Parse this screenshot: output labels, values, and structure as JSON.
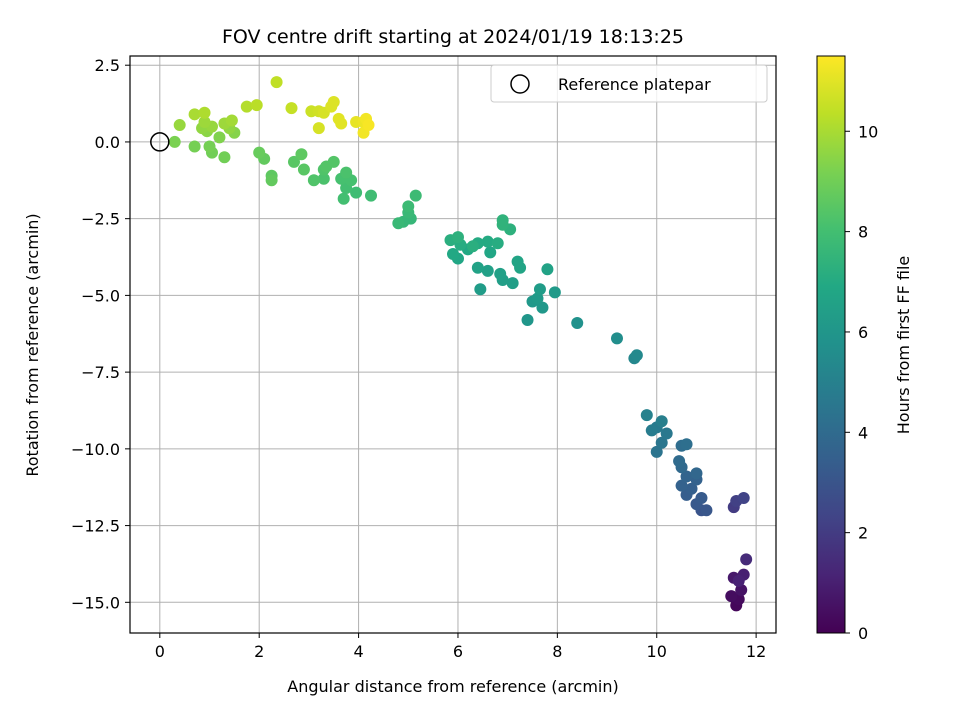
{
  "chart_data": {
    "type": "scatter",
    "title": "FOV centre drift starting at 2024/01/19 18:13:25",
    "xlabel": "Angular distance from reference (arcmin)",
    "ylabel": "Rotation from reference (arcmin)",
    "xlim": [
      -0.6,
      12.4
    ],
    "ylim": [
      -16.0,
      2.8
    ],
    "xticks": [
      0,
      2,
      4,
      6,
      8,
      10,
      12
    ],
    "yticks": [
      2.5,
      0.0,
      -2.5,
      -5.0,
      -7.5,
      -10.0,
      -12.5,
      -15.0
    ],
    "grid": true,
    "legend": {
      "placement": "top-right",
      "entries": [
        "Reference platepar"
      ]
    },
    "reference_point": {
      "x": 0,
      "y": 0
    },
    "colorbar": {
      "label": "Hours from first FF file",
      "range": [
        0,
        11.5
      ],
      "ticks": [
        0,
        2,
        4,
        6,
        8,
        10
      ],
      "colormap": "viridis"
    },
    "series": [
      {
        "points": [
          {
            "x": 11.6,
            "y": -15.1,
            "h": 0.2
          },
          {
            "x": 11.65,
            "y": -14.9,
            "h": 0.3
          },
          {
            "x": 11.5,
            "y": -14.8,
            "h": 0.4
          },
          {
            "x": 11.7,
            "y": -14.6,
            "h": 0.6
          },
          {
            "x": 11.55,
            "y": -14.2,
            "h": 0.8
          },
          {
            "x": 11.75,
            "y": -14.1,
            "h": 1.0
          },
          {
            "x": 11.65,
            "y": -14.3,
            "h": 1.1
          },
          {
            "x": 11.8,
            "y": -13.6,
            "h": 1.4
          },
          {
            "x": 11.55,
            "y": -11.9,
            "h": 2.0
          },
          {
            "x": 11.6,
            "y": -11.7,
            "h": 2.2
          },
          {
            "x": 11.75,
            "y": -11.6,
            "h": 2.3
          },
          {
            "x": 10.9,
            "y": -12.0,
            "h": 3.0
          },
          {
            "x": 11.0,
            "y": -12.0,
            "h": 3.1
          },
          {
            "x": 10.8,
            "y": -11.8,
            "h": 3.2
          },
          {
            "x": 10.9,
            "y": -11.6,
            "h": 3.3
          },
          {
            "x": 10.6,
            "y": -11.5,
            "h": 3.4
          },
          {
            "x": 10.7,
            "y": -11.3,
            "h": 3.5
          },
          {
            "x": 10.5,
            "y": -11.2,
            "h": 3.6
          },
          {
            "x": 10.8,
            "y": -11.0,
            "h": 3.6
          },
          {
            "x": 10.6,
            "y": -10.9,
            "h": 3.7
          },
          {
            "x": 10.8,
            "y": -10.8,
            "h": 3.8
          },
          {
            "x": 10.5,
            "y": -10.6,
            "h": 3.9
          },
          {
            "x": 10.45,
            "y": -10.4,
            "h": 4.0
          },
          {
            "x": 10.5,
            "y": -9.9,
            "h": 4.1
          },
          {
            "x": 10.6,
            "y": -9.85,
            "h": 4.2
          },
          {
            "x": 10.0,
            "y": -10.1,
            "h": 4.4
          },
          {
            "x": 10.1,
            "y": -9.8,
            "h": 4.5
          },
          {
            "x": 10.2,
            "y": -9.5,
            "h": 4.6
          },
          {
            "x": 10.0,
            "y": -9.3,
            "h": 4.7
          },
          {
            "x": 9.9,
            "y": -9.4,
            "h": 4.8
          },
          {
            "x": 10.1,
            "y": -9.1,
            "h": 4.9
          },
          {
            "x": 9.8,
            "y": -8.9,
            "h": 5.0
          },
          {
            "x": 9.55,
            "y": -7.05,
            "h": 5.3
          },
          {
            "x": 9.6,
            "y": -6.95,
            "h": 5.4
          },
          {
            "x": 9.2,
            "y": -6.4,
            "h": 5.6
          },
          {
            "x": 8.4,
            "y": -5.9,
            "h": 5.8
          },
          {
            "x": 7.4,
            "y": -5.8,
            "h": 6.0
          },
          {
            "x": 7.7,
            "y": -5.4,
            "h": 6.1
          },
          {
            "x": 7.5,
            "y": -5.2,
            "h": 6.1
          },
          {
            "x": 7.6,
            "y": -5.1,
            "h": 6.2
          },
          {
            "x": 7.95,
            "y": -4.9,
            "h": 6.2
          },
          {
            "x": 7.65,
            "y": -4.8,
            "h": 6.3
          },
          {
            "x": 6.45,
            "y": -4.8,
            "h": 6.3
          },
          {
            "x": 7.1,
            "y": -4.6,
            "h": 6.4
          },
          {
            "x": 6.9,
            "y": -4.5,
            "h": 6.4
          },
          {
            "x": 6.85,
            "y": -4.3,
            "h": 6.5
          },
          {
            "x": 6.6,
            "y": -4.2,
            "h": 6.5
          },
          {
            "x": 6.4,
            "y": -4.1,
            "h": 6.6
          },
          {
            "x": 7.8,
            "y": -4.15,
            "h": 6.6
          },
          {
            "x": 7.25,
            "y": -4.1,
            "h": 6.7
          },
          {
            "x": 7.2,
            "y": -3.9,
            "h": 6.7
          },
          {
            "x": 6.65,
            "y": -3.6,
            "h": 6.8
          },
          {
            "x": 6.0,
            "y": -3.8,
            "h": 6.8
          },
          {
            "x": 5.9,
            "y": -3.65,
            "h": 6.9
          },
          {
            "x": 6.2,
            "y": -3.5,
            "h": 6.9
          },
          {
            "x": 6.4,
            "y": -3.3,
            "h": 7.0
          },
          {
            "x": 6.6,
            "y": -3.25,
            "h": 7.0
          },
          {
            "x": 6.8,
            "y": -3.3,
            "h": 7.1
          },
          {
            "x": 6.05,
            "y": -3.35,
            "h": 7.1
          },
          {
            "x": 6.3,
            "y": -3.4,
            "h": 7.2
          },
          {
            "x": 5.85,
            "y": -3.2,
            "h": 7.2
          },
          {
            "x": 6.0,
            "y": -3.1,
            "h": 7.3
          },
          {
            "x": 7.05,
            "y": -2.85,
            "h": 7.3
          },
          {
            "x": 6.9,
            "y": -2.7,
            "h": 7.4
          },
          {
            "x": 6.9,
            "y": -2.55,
            "h": 7.4
          },
          {
            "x": 5.05,
            "y": -2.5,
            "h": 7.6
          },
          {
            "x": 4.9,
            "y": -2.6,
            "h": 7.6
          },
          {
            "x": 4.8,
            "y": -2.65,
            "h": 7.7
          },
          {
            "x": 5.0,
            "y": -2.3,
            "h": 7.7
          },
          {
            "x": 5.0,
            "y": -2.1,
            "h": 7.8
          },
          {
            "x": 5.15,
            "y": -1.75,
            "h": 7.8
          },
          {
            "x": 4.25,
            "y": -1.75,
            "h": 7.9
          },
          {
            "x": 3.95,
            "y": -1.65,
            "h": 7.9
          },
          {
            "x": 3.7,
            "y": -1.85,
            "h": 8.0
          },
          {
            "x": 3.75,
            "y": -1.5,
            "h": 8.0
          },
          {
            "x": 3.85,
            "y": -1.25,
            "h": 8.1
          },
          {
            "x": 3.65,
            "y": -1.2,
            "h": 8.1
          },
          {
            "x": 3.75,
            "y": -1.0,
            "h": 8.2
          },
          {
            "x": 3.3,
            "y": -1.2,
            "h": 8.2
          },
          {
            "x": 3.3,
            "y": -0.9,
            "h": 8.3
          },
          {
            "x": 3.1,
            "y": -1.25,
            "h": 8.3
          },
          {
            "x": 3.35,
            "y": -0.8,
            "h": 8.4
          },
          {
            "x": 3.5,
            "y": -0.65,
            "h": 8.4
          },
          {
            "x": 2.9,
            "y": -0.9,
            "h": 8.5
          },
          {
            "x": 2.7,
            "y": -0.65,
            "h": 8.5
          },
          {
            "x": 2.85,
            "y": -0.4,
            "h": 8.6
          },
          {
            "x": 2.25,
            "y": -1.1,
            "h": 8.6
          },
          {
            "x": 2.25,
            "y": -1.25,
            "h": 8.7
          },
          {
            "x": 2.1,
            "y": -0.55,
            "h": 8.7
          },
          {
            "x": 2.0,
            "y": -0.35,
            "h": 8.8
          },
          {
            "x": 1.3,
            "y": -0.5,
            "h": 9.0
          },
          {
            "x": 1.05,
            "y": -0.35,
            "h": 9.0
          },
          {
            "x": 1.0,
            "y": -0.15,
            "h": 9.1
          },
          {
            "x": 0.7,
            "y": -0.15,
            "h": 9.1
          },
          {
            "x": 0.3,
            "y": 0.0,
            "h": 9.2
          },
          {
            "x": 1.2,
            "y": 0.15,
            "h": 9.3
          },
          {
            "x": 1.5,
            "y": 0.3,
            "h": 9.4
          },
          {
            "x": 0.95,
            "y": 0.35,
            "h": 9.5
          },
          {
            "x": 0.85,
            "y": 0.45,
            "h": 9.6
          },
          {
            "x": 1.4,
            "y": 0.45,
            "h": 9.6
          },
          {
            "x": 1.05,
            "y": 0.5,
            "h": 9.7
          },
          {
            "x": 0.4,
            "y": 0.55,
            "h": 9.7
          },
          {
            "x": 1.3,
            "y": 0.6,
            "h": 9.8
          },
          {
            "x": 0.9,
            "y": 0.65,
            "h": 9.8
          },
          {
            "x": 1.45,
            "y": 0.7,
            "h": 9.9
          },
          {
            "x": 0.7,
            "y": 0.9,
            "h": 10.0
          },
          {
            "x": 0.9,
            "y": 0.95,
            "h": 10.1
          },
          {
            "x": 1.75,
            "y": 1.15,
            "h": 10.2
          },
          {
            "x": 1.95,
            "y": 1.2,
            "h": 10.3
          },
          {
            "x": 2.35,
            "y": 1.95,
            "h": 10.4
          },
          {
            "x": 2.65,
            "y": 1.1,
            "h": 10.5
          },
          {
            "x": 3.05,
            "y": 1.0,
            "h": 10.6
          },
          {
            "x": 3.2,
            "y": 1.0,
            "h": 10.7
          },
          {
            "x": 3.3,
            "y": 0.95,
            "h": 10.8
          },
          {
            "x": 3.2,
            "y": 0.45,
            "h": 10.8
          },
          {
            "x": 3.45,
            "y": 1.15,
            "h": 10.9
          },
          {
            "x": 3.5,
            "y": 1.3,
            "h": 10.9
          },
          {
            "x": 3.6,
            "y": 0.75,
            "h": 11.0
          },
          {
            "x": 3.65,
            "y": 0.6,
            "h": 11.0
          },
          {
            "x": 3.95,
            "y": 0.65,
            "h": 11.1
          },
          {
            "x": 4.1,
            "y": 0.65,
            "h": 11.2
          },
          {
            "x": 4.15,
            "y": 0.75,
            "h": 11.3
          },
          {
            "x": 4.1,
            "y": 0.3,
            "h": 11.3
          },
          {
            "x": 4.2,
            "y": 0.55,
            "h": 11.4
          }
        ]
      }
    ]
  }
}
